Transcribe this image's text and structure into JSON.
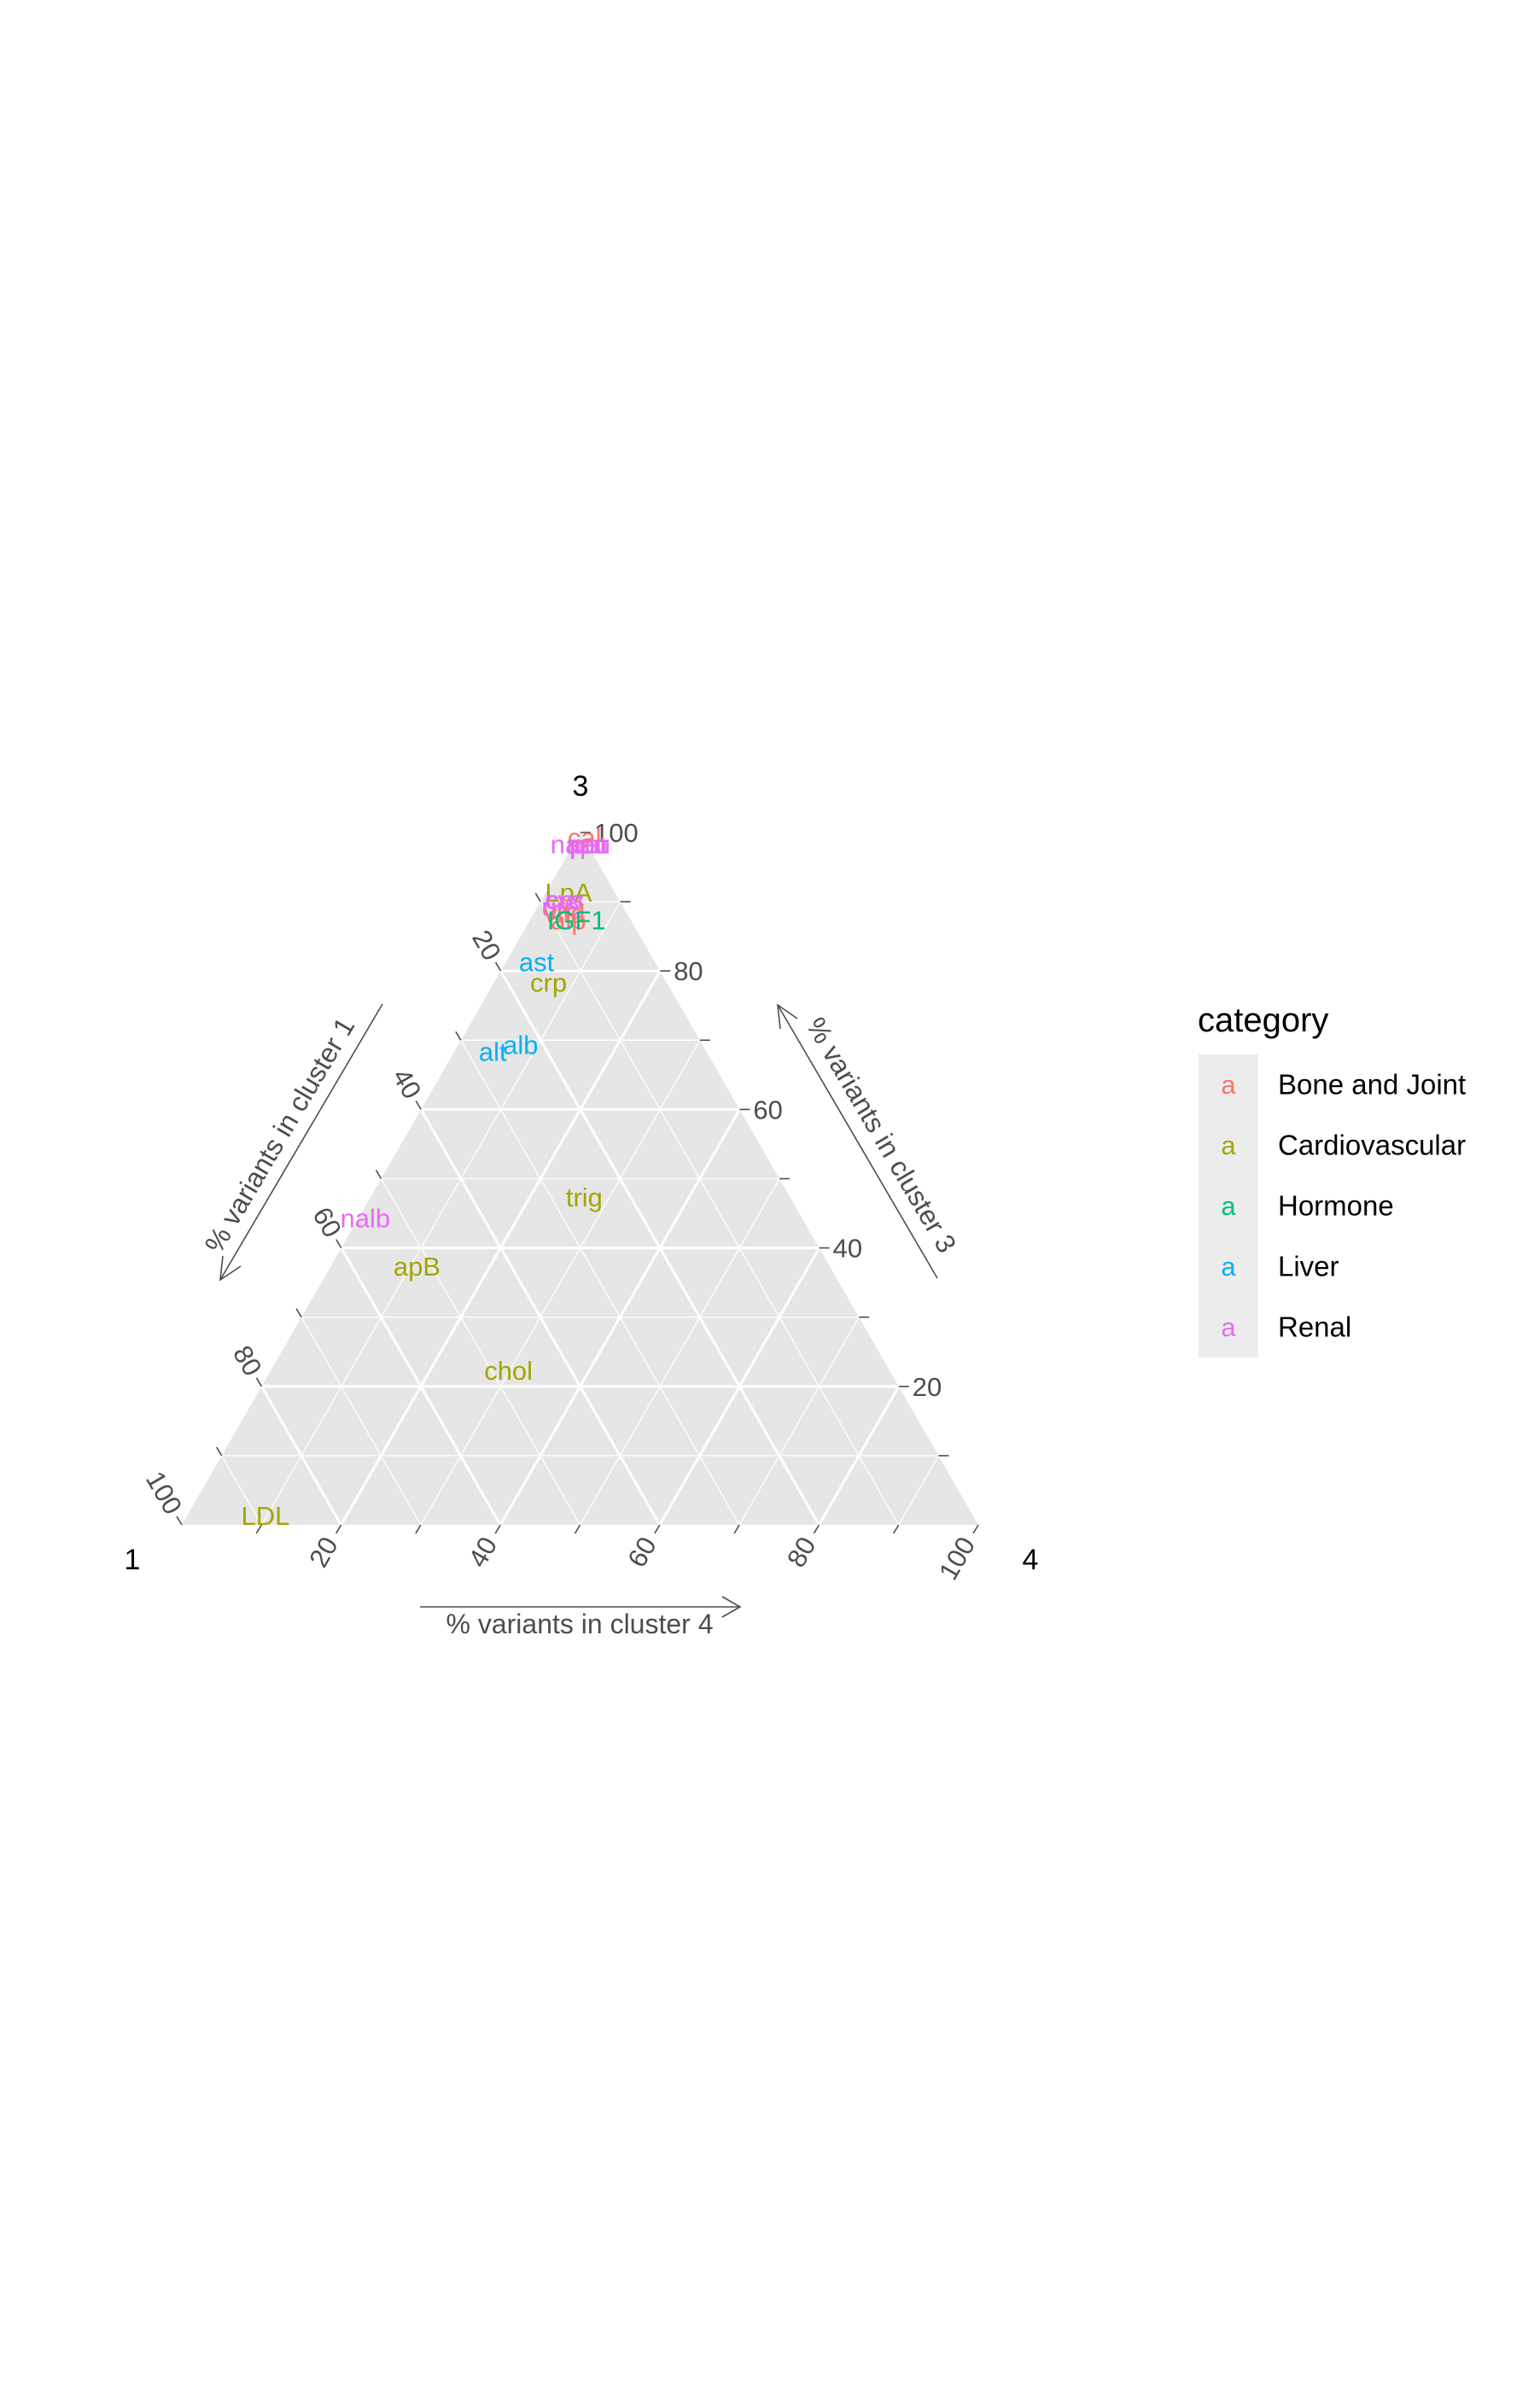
{
  "chart_data": {
    "type": "scatter",
    "subtype": "ternary",
    "vertex_labels": {
      "left": "1",
      "top": "3",
      "right": "4"
    },
    "axis_titles": {
      "cluster1": "% variants in cluster 1",
      "cluster3": "% variants in cluster 3",
      "cluster4": "% variants in cluster 4"
    },
    "tick_labels": [
      "20",
      "40",
      "60",
      "80",
      "100"
    ],
    "grid": true,
    "legend": {
      "title": "category",
      "position": "right",
      "key_glyph": "a",
      "entries": [
        {
          "name": "Bone and Joint",
          "color": "#F8766D"
        },
        {
          "name": "Cardiovascular",
          "color": "#A3A500"
        },
        {
          "name": "Hormone",
          "color": "#00BF7D"
        },
        {
          "name": "Liver",
          "color": "#00B0F6"
        },
        {
          "name": "Renal",
          "color": "#E76BF3"
        }
      ]
    },
    "points": [
      {
        "label": "nap",
        "category": "Renal",
        "c1": 2,
        "c3": 98,
        "c4": 0
      },
      {
        "label": "cal",
        "category": "Bone and Joint",
        "c1": 0,
        "c3": 99,
        "c4": 1
      },
      {
        "label": "pot",
        "category": "Renal",
        "c1": 0,
        "c3": 98,
        "c4": 2
      },
      {
        "label": "pru",
        "category": "Renal",
        "c1": 0,
        "c3": 98,
        "c4": 2
      },
      {
        "label": "nau",
        "category": "Renal",
        "c1": 0,
        "c3": 98,
        "c4": 2
      },
      {
        "label": "LpA",
        "category": "Cardiovascular",
        "c1": 6,
        "c3": 91,
        "c4": 3
      },
      {
        "label": "crn",
        "category": "Renal",
        "c1": 7,
        "c3": 90,
        "c4": 3
      },
      {
        "label": "cys",
        "category": "Renal",
        "c1": 7,
        "c3": 90,
        "c4": 3
      },
      {
        "label": "urc",
        "category": "Renal",
        "c1": 8,
        "c3": 89,
        "c4": 3
      },
      {
        "label": "ure",
        "category": "Renal",
        "c1": 8,
        "c3": 89,
        "c4": 3
      },
      {
        "label": "vitd",
        "category": "Bone and Joint",
        "c1": 8,
        "c3": 88,
        "c4": 4
      },
      {
        "label": "alp",
        "category": "Bone and Joint",
        "c1": 8,
        "c3": 87,
        "c4": 5
      },
      {
        "label": "IGF1",
        "category": "Hormone",
        "c1": 7,
        "c3": 87,
        "c4": 6
      },
      {
        "label": "ast",
        "category": "Liver",
        "c1": 15,
        "c3": 81,
        "c4": 4
      },
      {
        "label": "crp",
        "category": "Cardiovascular",
        "c1": 15,
        "c3": 78,
        "c4": 7
      },
      {
        "label": "alt",
        "category": "Liver",
        "c1": 27,
        "c3": 68,
        "c4": 5
      },
      {
        "label": "alb",
        "category": "Liver",
        "c1": 23,
        "c3": 69,
        "c4": 8
      },
      {
        "label": "trig",
        "category": "Cardiovascular",
        "c1": 26,
        "c3": 47,
        "c4": 27
      },
      {
        "label": "nalb",
        "category": "Renal",
        "c1": 55,
        "c3": 44,
        "c4": 1
      },
      {
        "label": "apB",
        "category": "Cardiovascular",
        "c1": 52,
        "c3": 37,
        "c4": 11
      },
      {
        "label": "chol",
        "category": "Cardiovascular",
        "c1": 48,
        "c3": 22,
        "c4": 30
      },
      {
        "label": "LDL",
        "category": "Cardiovascular",
        "c1": 89,
        "c3": 1,
        "c4": 10
      }
    ]
  }
}
